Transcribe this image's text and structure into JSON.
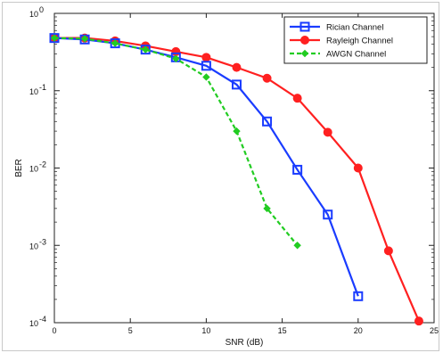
{
  "chart_data": {
    "type": "line",
    "xlabel": "SNR (dB)",
    "ylabel": "BER",
    "xlim": [
      0,
      25
    ],
    "ylim": [
      0.0001,
      1
    ],
    "yscale": "log",
    "grid": false,
    "legend_position": "top-right",
    "x_ticks": [
      0,
      5,
      10,
      15,
      20,
      25
    ],
    "y_ticks": [
      {
        "value": 1,
        "exp": "0"
      },
      {
        "value": 0.1,
        "exp": "-1"
      },
      {
        "value": 0.01,
        "exp": "-2"
      },
      {
        "value": 0.001,
        "exp": "-3"
      },
      {
        "value": 0.0001,
        "exp": "-4"
      }
    ],
    "series": [
      {
        "name": "Rician Channel",
        "color": "#1a3cff",
        "marker": "square",
        "style": "solid",
        "x": [
          0,
          2,
          4,
          6,
          8,
          10,
          12,
          14,
          16,
          18,
          20
        ],
        "y": [
          0.48,
          0.46,
          0.41,
          0.34,
          0.27,
          0.21,
          0.12,
          0.04,
          0.0095,
          0.0025,
          0.00022
        ]
      },
      {
        "name": "Rayleigh Channel",
        "color": "#ff2020",
        "marker": "circle",
        "style": "solid",
        "x": [
          0,
          2,
          4,
          6,
          8,
          10,
          12,
          14,
          16,
          18,
          20,
          22,
          24
        ],
        "y": [
          0.48,
          0.48,
          0.44,
          0.38,
          0.32,
          0.27,
          0.2,
          0.145,
          0.08,
          0.029,
          0.01,
          0.00085,
          0.000105
        ]
      },
      {
        "name": "AWGN Channel",
        "color": "#22cc22",
        "marker": "diamond",
        "style": "dashed",
        "x": [
          0,
          2,
          4,
          6,
          8,
          10,
          12,
          14,
          16
        ],
        "y": [
          0.48,
          0.47,
          0.41,
          0.34,
          0.26,
          0.15,
          0.03,
          0.003,
          0.001
        ]
      }
    ]
  }
}
